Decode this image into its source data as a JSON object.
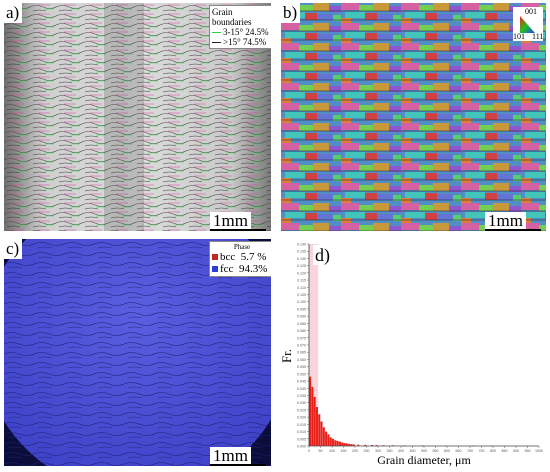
{
  "panels": {
    "a": {
      "label": "a)",
      "scale": "1mm",
      "legend": {
        "title": "Grain boundaries",
        "rows": [
          {
            "range": "3-15°",
            "value": "24.5%",
            "color": "#2bd14a"
          },
          {
            "range": ">15°",
            "value": "74.5%",
            "color": "#222222"
          }
        ]
      }
    },
    "b": {
      "label": "b)",
      "scale": "1mm",
      "ipf": {
        "top": "001",
        "left": "101",
        "right": "111"
      }
    },
    "c": {
      "label": "c)",
      "scale": "1mm",
      "legend": {
        "title": "Phase",
        "rows": [
          {
            "name": "bcc",
            "value": "5.7 %",
            "color": "#c0281e"
          },
          {
            "name": "fcc",
            "value": "94.3%",
            "color": "#2a3bd8"
          }
        ]
      }
    },
    "d": {
      "label": "d)"
    }
  },
  "chart_data": {
    "type": "bar",
    "xlabel": "Grain diameter, μm",
    "ylabel": "Fr.",
    "xlim": [
      0,
      1000
    ],
    "ylim": [
      0,
      0.14
    ],
    "x": [
      10,
      20,
      30,
      40,
      50,
      60,
      70,
      80,
      90,
      100,
      110,
      120,
      130,
      140,
      150,
      160,
      170,
      180,
      190,
      200,
      220,
      250,
      280,
      300,
      330,
      370,
      420,
      500,
      600,
      720,
      800
    ],
    "values": [
      0.048,
      0.041,
      0.034,
      0.027,
      0.022,
      0.017,
      0.013,
      0.01,
      0.008,
      0.006,
      0.005,
      0.004,
      0.0035,
      0.003,
      0.0025,
      0.002,
      0.0018,
      0.0015,
      0.0013,
      0.0011,
      0.0009,
      0.0008,
      0.0007,
      0.0006,
      0.0005,
      0.0005,
      0.0004,
      0.0004,
      0.0003,
      0.0003,
      0.0002
    ],
    "colors": {
      "bar": "#e8201a",
      "highlight": "#f6c9d2"
    }
  }
}
